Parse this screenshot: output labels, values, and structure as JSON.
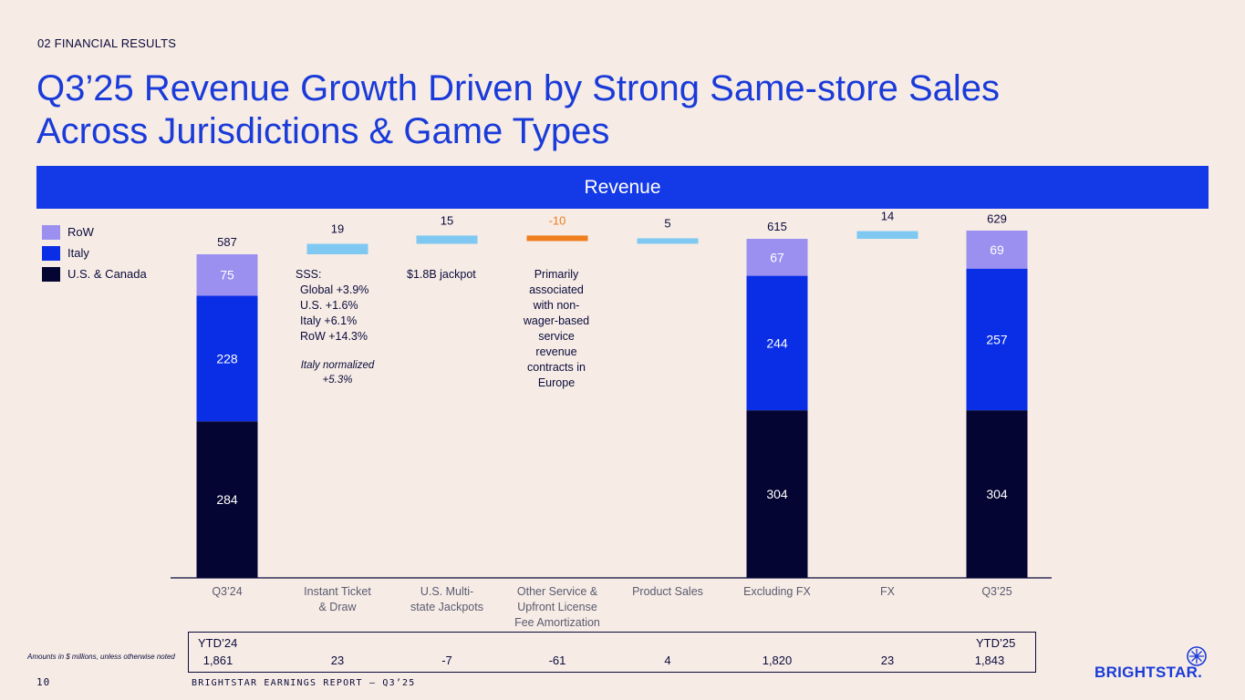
{
  "section_tag": "02 FINANCIAL RESULTS",
  "title_line1": "Q3’25 Revenue Growth Driven by Strong Same-store Sales",
  "title_line2": "Across Jurisdictions & Game Types",
  "band_label": "Revenue",
  "colors": {
    "us_canada": "#050533",
    "italy": "#0a2ee6",
    "row": "#9b8ff0",
    "bridge_positive": "#7fc8f2",
    "bridge_negative": "#f07d1e",
    "title_blue": "#1a3bd9"
  },
  "legend": [
    {
      "label": "RoW",
      "color": "#9b8ff0"
    },
    {
      "label": "Italy",
      "color": "#0a2ee6"
    },
    {
      "label": "U.S. & Canada",
      "color": "#050533"
    }
  ],
  "notes": {
    "sss_title": "SSS:",
    "sss_lines": [
      "Global +3.9%",
      "U.S. +1.6%",
      "Italy +6.1%",
      "RoW +14.3%"
    ],
    "italy_normalized": [
      "Italy normalized",
      "+5.3%"
    ],
    "jackpot": "$1.8B jackpot",
    "other_service": [
      "Primarily",
      "associated",
      "with non-",
      "wager-based",
      "service",
      "revenue",
      "contracts in",
      "Europe"
    ]
  },
  "chart_data": {
    "type": "waterfall",
    "title": "Revenue",
    "ylim": [
      0,
      660
    ],
    "categories": [
      "Q3’24",
      "Instant Ticket & Draw",
      "U.S. Multi-state Jackpots",
      "Other Service & Upfront License Fee Amortization",
      "Product Sales",
      "Excluding FX",
      "FX",
      "Q3’25"
    ],
    "category_lines": [
      [
        "Q3’24"
      ],
      [
        "Instant Ticket",
        "& Draw"
      ],
      [
        "U.S. Multi-",
        "state Jackpots"
      ],
      [
        "Other Service &",
        "Upfront License",
        "Fee Amortization"
      ],
      [
        "Product Sales"
      ],
      [
        "Excluding FX"
      ],
      [
        "FX"
      ],
      [
        "Q3’25"
      ]
    ],
    "stacked_totals": [
      {
        "category": "Q3’24",
        "total": 587,
        "us_canada": 284,
        "italy": 228,
        "row": 75
      },
      {
        "category": "Excluding FX",
        "total": 615,
        "us_canada": 304,
        "italy": 244,
        "row": 67
      },
      {
        "category": "Q3’25",
        "total": 629,
        "us_canada": 304,
        "italy": 257,
        "row": 69
      }
    ],
    "bridge_changes": [
      {
        "category": "Instant Ticket & Draw",
        "value": 19,
        "label": "19"
      },
      {
        "category": "U.S. Multi-state Jackpots",
        "value": 15,
        "label": "15"
      },
      {
        "category": "Other Service & Upfront License Fee Amortization",
        "value": -10,
        "label": "-10"
      },
      {
        "category": "Product Sales",
        "value": 5,
        "label": "5"
      },
      {
        "category": "FX",
        "value": 14,
        "label": "14"
      }
    ],
    "series_names": [
      "U.S. & Canada",
      "Italy",
      "RoW"
    ]
  },
  "ytd": {
    "label_start": "YTD’24",
    "label_end": "YTD’25",
    "values": [
      "1,861",
      "23",
      "-7",
      "-61",
      "4",
      "1,820",
      "23",
      "1,843"
    ]
  },
  "footnote": "Amounts in $ millions, unless otherwise noted",
  "page_number": "10",
  "footer_title": "BRIGHTSTAR EARNINGS REPORT – Q3’25",
  "logo_text": "BRIGHTSTAR."
}
